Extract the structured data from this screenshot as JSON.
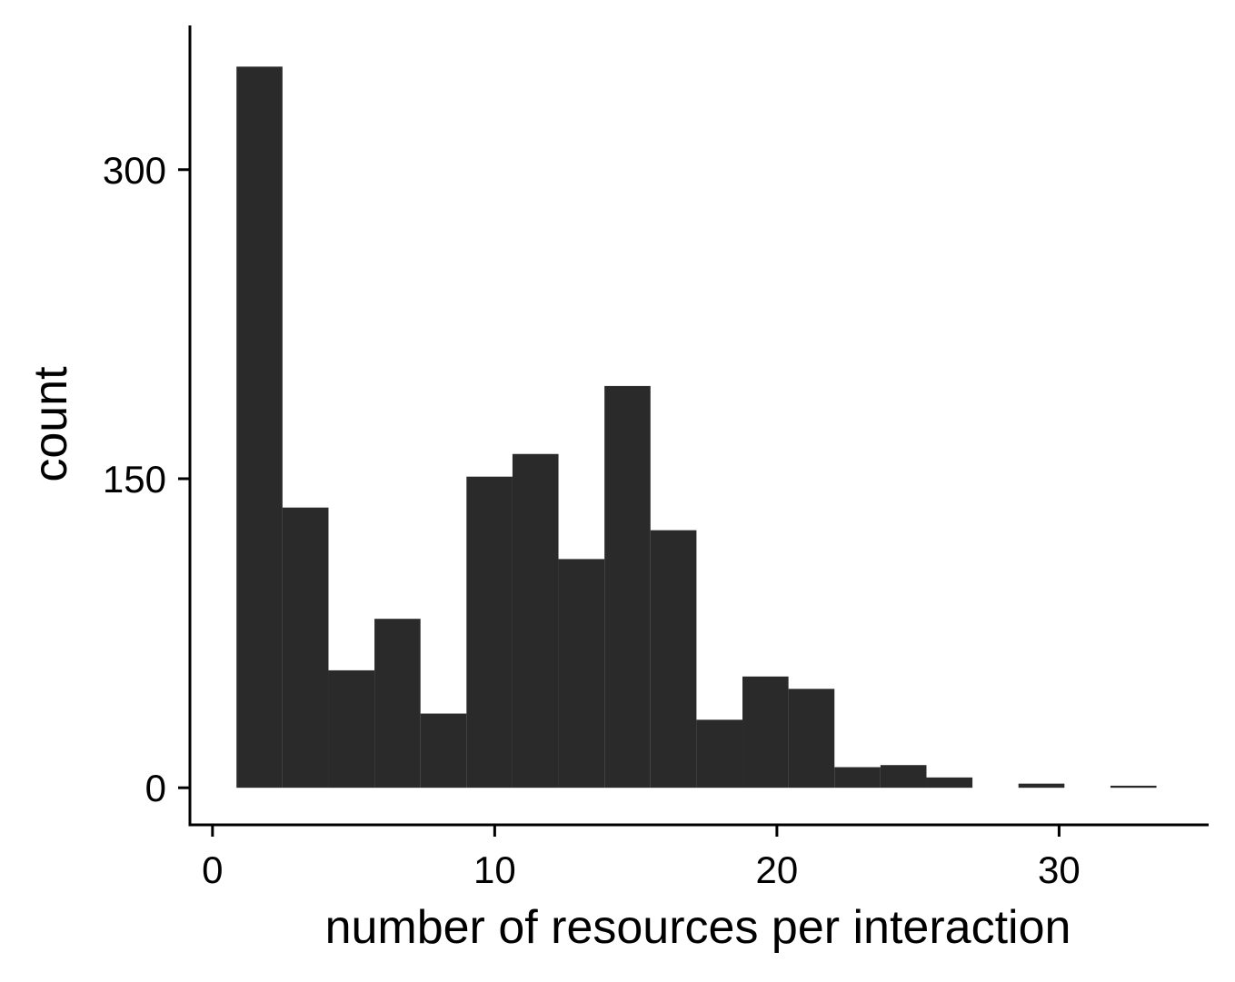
{
  "chart_data": {
    "type": "bar",
    "subtype": "histogram",
    "xlabel": "number of resources per interaction",
    "ylabel": "count",
    "x_ticks": [
      0,
      10,
      20,
      30
    ],
    "y_ticks": [
      0,
      150,
      300
    ],
    "xlim": [
      -0.8,
      35.3
    ],
    "ylim": [
      -18,
      370
    ],
    "bin_width": 1.63,
    "bins": [
      {
        "start": 0.85,
        "count": 350
      },
      {
        "start": 2.48,
        "count": 136
      },
      {
        "start": 4.11,
        "count": 57
      },
      {
        "start": 5.74,
        "count": 82
      },
      {
        "start": 7.37,
        "count": 36
      },
      {
        "start": 9.0,
        "count": 151
      },
      {
        "start": 10.63,
        "count": 162
      },
      {
        "start": 12.26,
        "count": 111
      },
      {
        "start": 13.89,
        "count": 195
      },
      {
        "start": 15.52,
        "count": 125
      },
      {
        "start": 17.15,
        "count": 33
      },
      {
        "start": 18.78,
        "count": 54
      },
      {
        "start": 20.41,
        "count": 48
      },
      {
        "start": 22.04,
        "count": 10
      },
      {
        "start": 23.67,
        "count": 11
      },
      {
        "start": 25.3,
        "count": 5
      },
      {
        "start": 26.93,
        "count": 0
      },
      {
        "start": 28.56,
        "count": 2
      },
      {
        "start": 30.19,
        "count": 0
      },
      {
        "start": 31.82,
        "count": 1
      }
    ],
    "bar_color": "#2a2a2a",
    "grid": false
  }
}
